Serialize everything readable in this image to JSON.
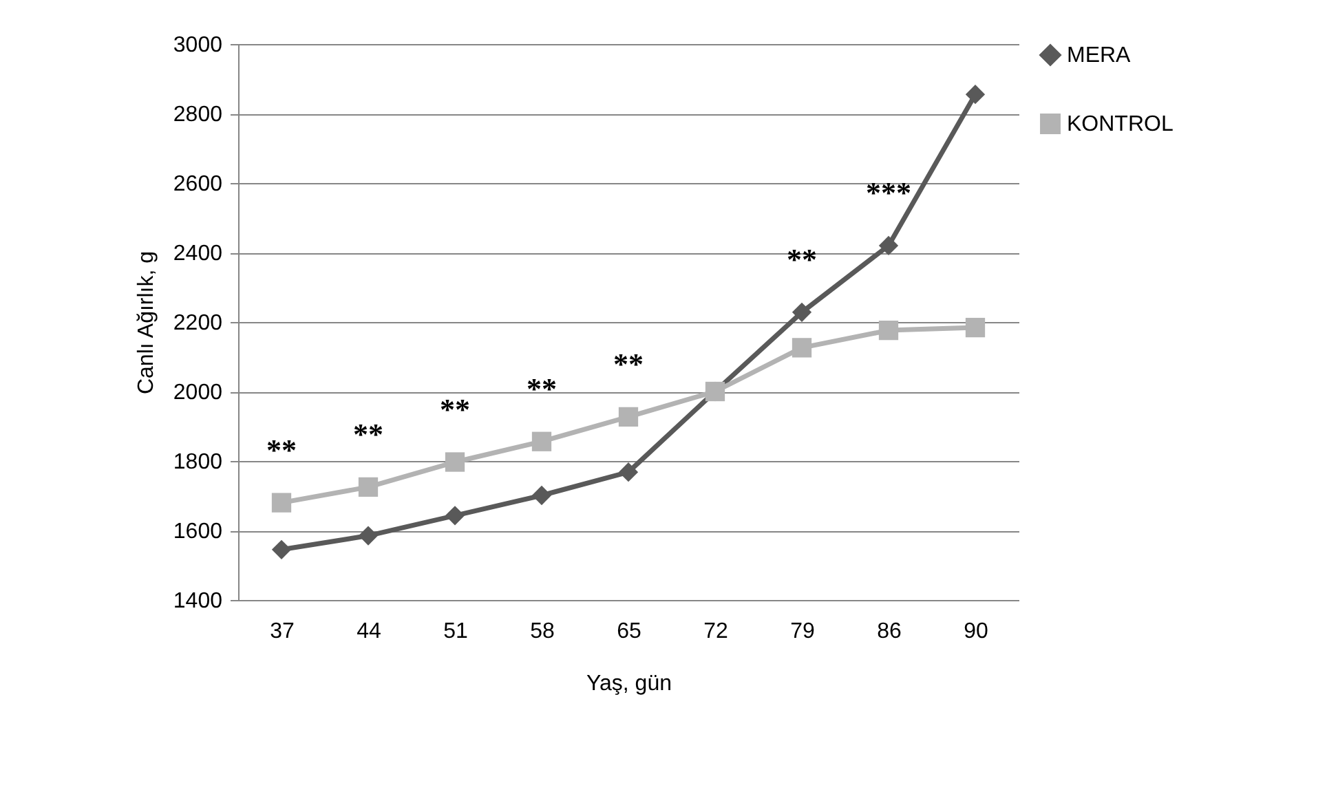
{
  "chart_data": {
    "type": "line",
    "xlabel": "Yaş, gün",
    "ylabel": "Canlı Ağırlık, g",
    "categories": [
      "37",
      "44",
      "51",
      "58",
      "65",
      "72",
      "79",
      "86",
      "90"
    ],
    "series": [
      {
        "name": "MERA",
        "color": "#595959",
        "marker": "diamond",
        "values": [
          1545,
          1585,
          1643,
          1701,
          1768,
          2000,
          2228,
          2420,
          2855
        ]
      },
      {
        "name": "KONTROL",
        "color": "#b3b3b3",
        "marker": "square",
        "values": [
          1680,
          1725,
          1797,
          1856,
          1927,
          2000,
          2126,
          2176,
          2184
        ]
      }
    ],
    "ylim": [
      1400,
      3000
    ],
    "yticks": [
      1400,
      1600,
      1800,
      2000,
      2200,
      2400,
      2600,
      2800,
      3000
    ],
    "grid": "y",
    "legend": "right",
    "annotations": [
      {
        "text": "**",
        "x": "37",
        "y": 1680
      },
      {
        "text": "**",
        "x": "44",
        "y": 1725
      },
      {
        "text": "**",
        "x": "51",
        "y": 1797
      },
      {
        "text": "**",
        "x": "58",
        "y": 1856
      },
      {
        "text": "**",
        "x": "65",
        "y": 1927
      },
      {
        "text": "**",
        "x": "79",
        "y": 2228
      },
      {
        "text": "***",
        "x": "86",
        "y": 2420
      }
    ]
  }
}
